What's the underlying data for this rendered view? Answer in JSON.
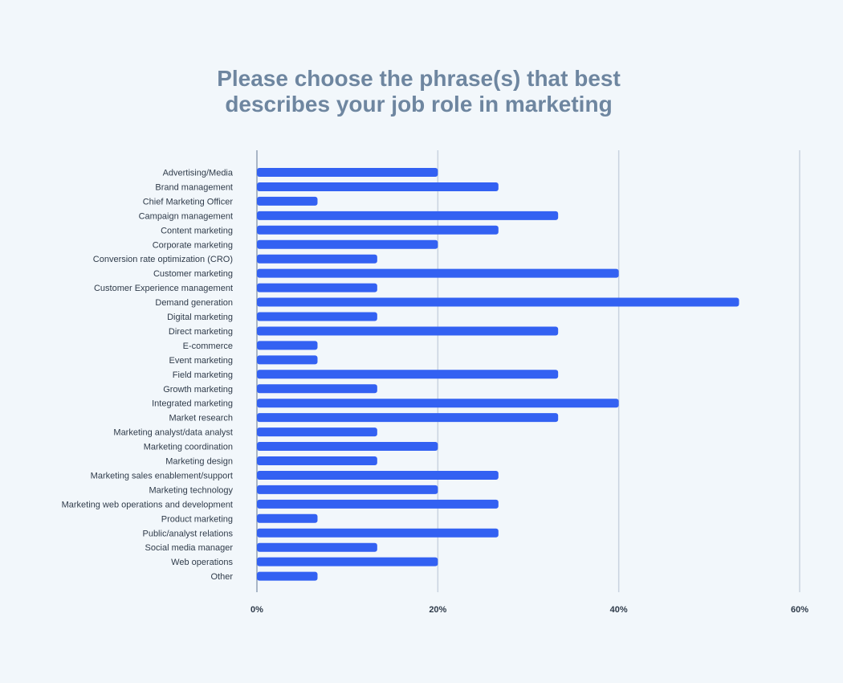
{
  "chart_data": {
    "type": "bar",
    "orientation": "horizontal",
    "title_lines": [
      "Please choose the phrase(s) that best",
      "describes your job role in marketing"
    ],
    "xlabel": "",
    "ylabel": "",
    "xlim": [
      0,
      60
    ],
    "x_ticks": [
      "0%",
      "20%",
      "40%",
      "60%"
    ],
    "grid": true,
    "bar_color": "#3361f2",
    "categories": [
      "Advertising/Media",
      "Brand management",
      "Chief Marketing Officer",
      "Campaign management",
      "Content marketing",
      "Corporate marketing",
      "Conversion rate optimization (CRO)",
      "Customer marketing",
      "Customer Experience management",
      "Demand generation",
      "Digital marketing",
      "Direct marketing",
      "E-commerce",
      "Event marketing",
      "Field marketing",
      "Growth marketing",
      "Integrated marketing",
      "Market research",
      "Marketing analyst/data analyst",
      "Marketing coordination",
      "Marketing design",
      "Marketing sales enablement/support",
      "Marketing technology",
      "Marketing web operations and development",
      "Product marketing",
      "Public/analyst relations",
      "Social media manager",
      "Web operations",
      "Other"
    ],
    "values": [
      20,
      26.7,
      6.7,
      33.3,
      26.7,
      20,
      13.3,
      40,
      13.3,
      53.3,
      13.3,
      33.3,
      6.7,
      6.7,
      33.3,
      13.3,
      40,
      33.3,
      13.3,
      20,
      13.3,
      26.7,
      20,
      26.7,
      6.7,
      26.7,
      13.3,
      20,
      6.7
    ]
  }
}
